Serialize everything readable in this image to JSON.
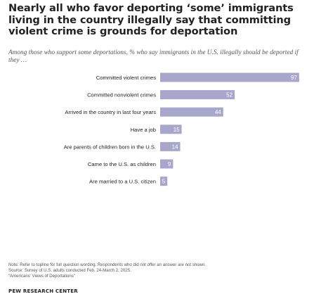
{
  "title": "Nearly all who favor deporting ‘some’ immigrants living in the country illegally say that committing violent crime is grounds for deportation",
  "subtitle": "Among those who support some deportations, % who say immigrants in the U.S. illegally should be deported if they …",
  "notes": {
    "note": "Note: Refer to topline for full question wording. Respondents who did not offer an answer are not shown.",
    "source": "Source: Survey of U.S. adults conducted Feb. 24-March 2, 2025.",
    "report": "“Americans’ Views of Deportations”"
  },
  "brand": "PEW RESEARCH CENTER",
  "colors": {
    "bar": "#a9a6cc",
    "value_label": "#ffffff",
    "text": "#222222"
  },
  "chart_data": {
    "type": "bar",
    "orientation": "horizontal",
    "categories": [
      "Committed violent crimes",
      "Committed nonviolent crimes",
      "Arrived in the country in last four years",
      "Have a job",
      "Are parents of children born in the U.S.",
      "Came to the U.S. as children",
      "Are married to a U.S. citizen"
    ],
    "values": [
      97,
      52,
      44,
      15,
      14,
      9,
      5
    ],
    "value_labels": [
      "97",
      "52",
      "44",
      "15",
      "14",
      "9",
      "5"
    ],
    "xlim": [
      0,
      100
    ],
    "grid": false,
    "legend": "none"
  }
}
